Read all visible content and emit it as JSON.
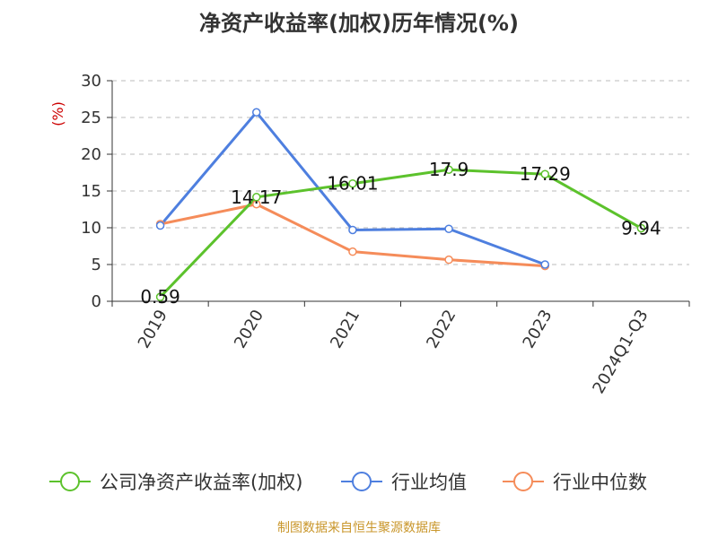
{
  "chart_data": {
    "type": "line",
    "title": "净资产收益率(加权)历年情况(%)",
    "ylabel": "(%)",
    "xlabel": "",
    "categories": [
      "2019",
      "2020",
      "2021",
      "2022",
      "2023",
      "2024Q1-Q3"
    ],
    "ylim": [
      0,
      30
    ],
    "yticks": [
      0,
      5,
      10,
      15,
      20,
      25,
      30
    ],
    "grid": true,
    "legend_position": "bottom",
    "series": [
      {
        "name": "公司净资产收益率(加权)",
        "color": "#5cc22c",
        "values": [
          0.59,
          14.17,
          16.01,
          17.9,
          17.29,
          9.94
        ],
        "labels": [
          "0.59",
          "14.17",
          "16.01",
          "17.9",
          "17.29",
          "9.94"
        ]
      },
      {
        "name": "行业均值",
        "color": "#4e7fdf",
        "values": [
          10.3,
          25.7,
          9.7,
          9.85,
          5.0,
          null
        ]
      },
      {
        "name": "行业中位数",
        "color": "#f58c5a",
        "values": [
          10.5,
          13.2,
          6.75,
          5.65,
          4.8,
          null
        ]
      }
    ]
  },
  "source_text": "制图数据来自恒生聚源数据库",
  "source_color": "#c9962a"
}
